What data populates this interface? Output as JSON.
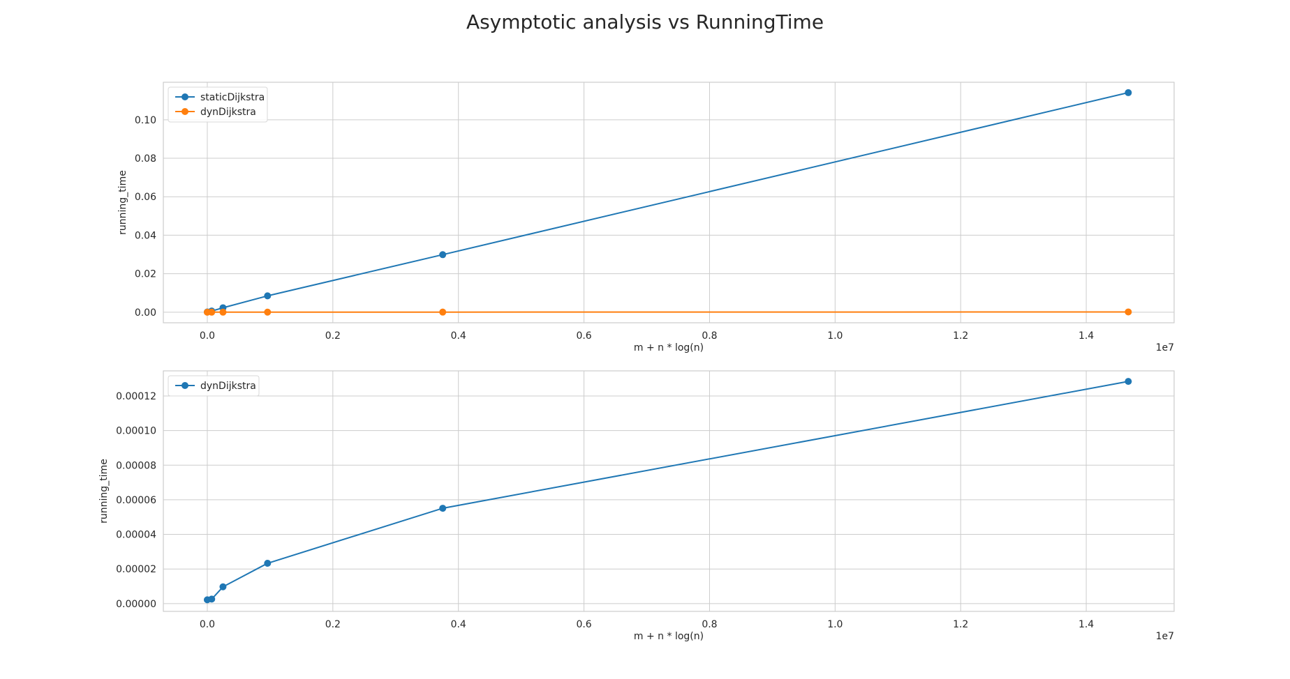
{
  "figure": {
    "title": "Asymptotic analysis vs RunningTime"
  },
  "chart_data": [
    {
      "type": "line",
      "title": "",
      "xlabel": "m + n * log(n)",
      "ylabel": "running_time",
      "x_offset_label": "1e7",
      "xlim": [
        -0.07,
        1.54
      ],
      "ylim": [
        -0.0055,
        0.1195
      ],
      "xticks": [
        0.0,
        0.2,
        0.4,
        0.6,
        0.8,
        1.0,
        1.2,
        1.4
      ],
      "xtick_labels": [
        "0.0",
        "0.2",
        "0.4",
        "0.6",
        "0.8",
        "1.0",
        "1.2",
        "1.4"
      ],
      "yticks": [
        0.0,
        0.02,
        0.04,
        0.06,
        0.08,
        0.1
      ],
      "ytick_labels": [
        "0.00",
        "0.02",
        "0.04",
        "0.06",
        "0.08",
        "0.10"
      ],
      "grid": true,
      "legend": "top-left",
      "x": [
        0.0,
        0.007,
        0.025,
        0.096,
        0.375,
        1.467
      ],
      "series": [
        {
          "name": "staticDijkstra",
          "color": "#1f77b4",
          "values": [
            0.0001,
            0.0006,
            0.0023,
            0.0085,
            0.0299,
            0.1141
          ]
        },
        {
          "name": "dynDijkstra",
          "color": "#ff7f0e",
          "values": [
            2e-06,
            3e-06,
            1e-05,
            2.3e-05,
            5.5e-05,
            0.000128
          ]
        }
      ]
    },
    {
      "type": "line",
      "title": "",
      "xlabel": "m + n * log(n)",
      "ylabel": "running_time",
      "x_offset_label": "1e7",
      "xlim": [
        -0.07,
        1.54
      ],
      "ylim": [
        -4.5e-06,
        0.0001345
      ],
      "xticks": [
        0.0,
        0.2,
        0.4,
        0.6,
        0.8,
        1.0,
        1.2,
        1.4
      ],
      "xtick_labels": [
        "0.0",
        "0.2",
        "0.4",
        "0.6",
        "0.8",
        "1.0",
        "1.2",
        "1.4"
      ],
      "yticks": [
        0.0,
        2e-05,
        4e-05,
        6e-05,
        8e-05,
        0.0001,
        0.00012
      ],
      "ytick_labels": [
        "0.00000",
        "0.00002",
        "0.00004",
        "0.00006",
        "0.00008",
        "0.00010",
        "0.00012"
      ],
      "grid": true,
      "legend": "top-left",
      "x": [
        0.0,
        0.007,
        0.025,
        0.096,
        0.375,
        1.467
      ],
      "series": [
        {
          "name": "dynDijkstra",
          "color": "#1f77b4",
          "values": [
            2.2e-06,
            2.6e-06,
            9.7e-06,
            2.33e-05,
            5.51e-05,
            0.0001284
          ]
        }
      ]
    }
  ]
}
